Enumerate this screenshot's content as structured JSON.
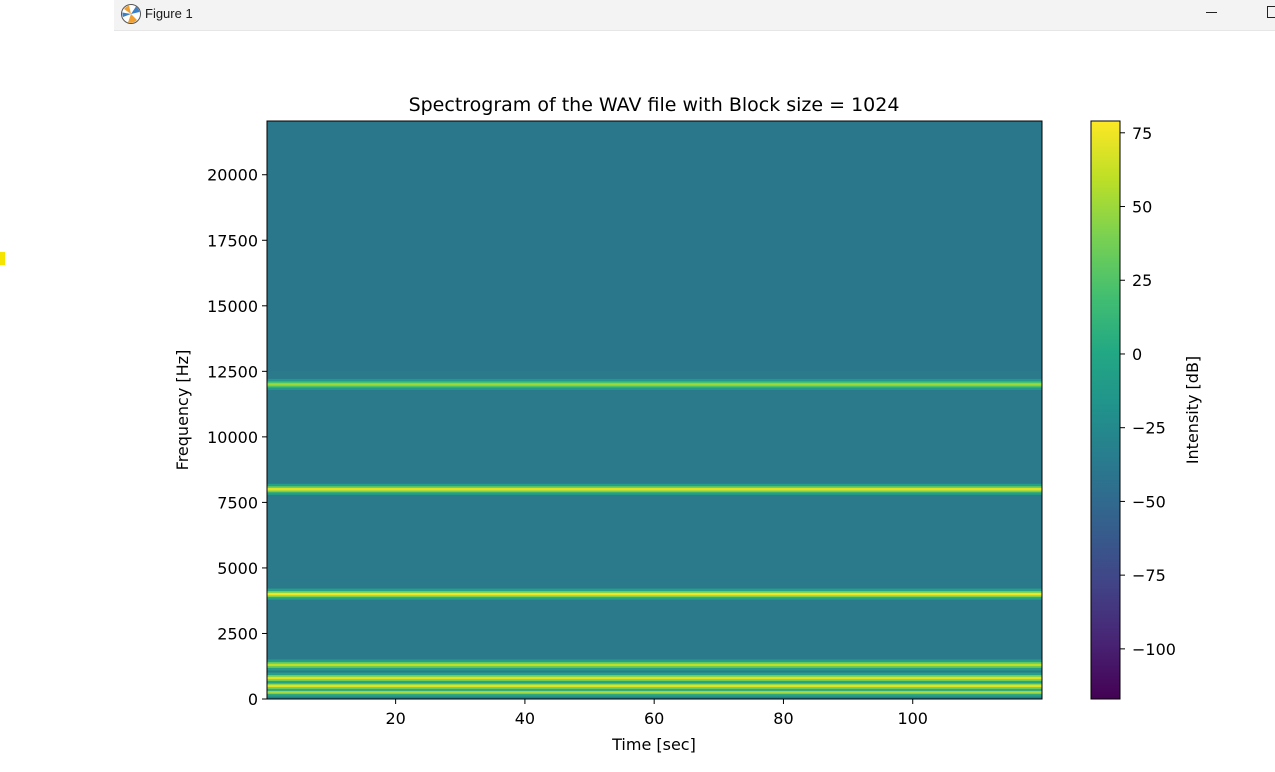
{
  "window": {
    "title": "Figure 1",
    "icon": "matplotlib-figure-icon",
    "controls": [
      "minimize-icon",
      "maximize-icon"
    ]
  },
  "chart_data": {
    "type": "heatmap",
    "title": "Spectrogram of the WAV file with Block size = 1024",
    "xlabel": "Time [sec]",
    "ylabel": "Frequency [Hz]",
    "xlim": [
      0.1,
      120
    ],
    "ylim": [
      0,
      22050
    ],
    "xticks": [
      20,
      40,
      60,
      80,
      100
    ],
    "yticks": [
      0,
      2500,
      5000,
      7500,
      10000,
      12500,
      15000,
      17500,
      20000
    ],
    "colormap": "viridis",
    "background_level_db": -42,
    "tonal_components": [
      {
        "frequency_hz": 300,
        "level_db": 75
      },
      {
        "frequency_hz": 500,
        "level_db": 70
      },
      {
        "frequency_hz": 800,
        "level_db": 70
      },
      {
        "frequency_hz": 1300,
        "level_db": 60
      },
      {
        "frequency_hz": 4000,
        "level_db": 75
      },
      {
        "frequency_hz": 8000,
        "level_db": 70
      },
      {
        "frequency_hz": 12000,
        "level_db": 50
      }
    ],
    "colorbar": {
      "label": "Intensity [dB]",
      "range": [
        -117,
        79
      ],
      "ticks": [
        -100,
        -75,
        -50,
        -25,
        0,
        25,
        50,
        75
      ],
      "tick_labels": [
        "−100",
        "−75",
        "−50",
        "−25",
        "0",
        "25",
        "50",
        "75"
      ]
    }
  }
}
